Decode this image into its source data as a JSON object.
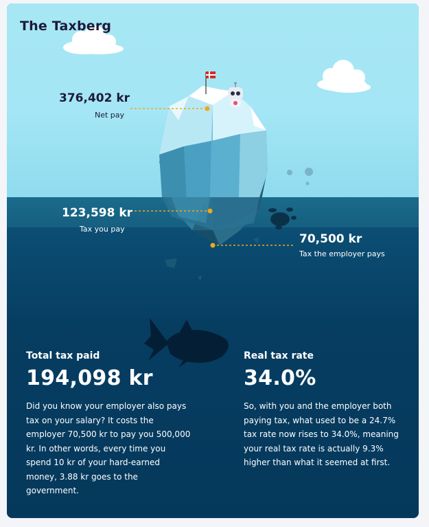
{
  "title": "The Taxberg",
  "colors": {
    "sky": "#a4e6f5",
    "water_surface": "#1a6b8c",
    "water_deep": "#05395c",
    "dotted_line": "#f0a81c",
    "title_text": "#1e1a3c"
  },
  "markers": {
    "net_pay": {
      "value": "376,402 kr",
      "label": "Net pay"
    },
    "tax_you_pay": {
      "value": "123,598 kr",
      "label": "Tax you pay"
    },
    "employer_tax": {
      "value": "70,500 kr",
      "label": "Tax the employer pays"
    }
  },
  "stats": {
    "total": {
      "heading": "Total tax paid",
      "value": "194,098 kr",
      "text": "Did you know your employer also pays tax on your salary? It costs the employer 70,500 kr to pay you 500,000 kr. In other words, every time you spend 10 kr of your hard-earned money, 3.88 kr goes to the government."
    },
    "rate": {
      "heading": "Real tax rate",
      "value": "34.0%",
      "text": "So, with you and the employer both paying tax, what used to be a 24.7% tax rate now rises to 34.0%, meaning your real tax rate is actually 9.3% higher than what it seemed at first."
    }
  },
  "icons": {
    "flag": "denmark-flag-icon",
    "robot": "robot-mascot-icon",
    "cloud": "cloud-icon",
    "shark": "shark-silhouette-icon",
    "turtle": "turtle-silhouette-icon"
  }
}
